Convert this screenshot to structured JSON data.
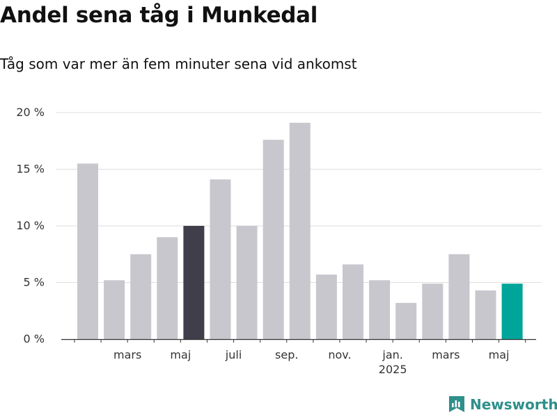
{
  "header": {
    "title": "Andel sena tåg i Munkedal",
    "subtitle": "Tåg som var mer än fem minuter sena vid ankomst"
  },
  "branding": {
    "logo_text": "Newsworthy",
    "logo_icon": "bar-chart-bookmark-icon",
    "logo_color": "#2f8f8a"
  },
  "chart_data": {
    "type": "bar",
    "title": "Andel sena tåg i Munkedal",
    "subtitle": "Tåg som var mer än fem minuter sena vid ankomst",
    "xlabel": "",
    "ylabel": "",
    "ylim": [
      0,
      20
    ],
    "yticks": [
      0,
      5,
      10,
      15,
      20
    ],
    "ytick_labels": [
      "0 %",
      "5 %",
      "10 %",
      "15 %",
      "20 %"
    ],
    "grid": true,
    "legend": "none",
    "categories": [
      "2024-02",
      "2024-03",
      "2024-04",
      "2024-05",
      "2024-06",
      "2024-07",
      "2024-08",
      "2024-09",
      "2024-10",
      "2024-11",
      "2024-12",
      "2025-01",
      "2025-02",
      "2025-03",
      "2025-04",
      "2025-05",
      "2025-06"
    ],
    "values": [
      15.5,
      5.2,
      7.5,
      9.0,
      10.0,
      14.1,
      10.0,
      17.6,
      19.1,
      5.7,
      6.6,
      5.2,
      3.2,
      4.9,
      7.5,
      4.3,
      4.9
    ],
    "highlight": {
      "2024-06": "#3f3e4a",
      "2025-06": "#00a59a"
    },
    "default_color": "#c8c7ce",
    "xtick_labels": [
      {
        "category": "2024-03",
        "label": "mars"
      },
      {
        "category": "2024-05",
        "label": "maj"
      },
      {
        "category": "2024-07",
        "label": "juli"
      },
      {
        "category": "2024-09",
        "label": "sep."
      },
      {
        "category": "2024-11",
        "label": "nov."
      },
      {
        "category": "2025-01",
        "label": "jan.",
        "sublabel": "2025"
      },
      {
        "category": "2025-03",
        "label": "mars"
      },
      {
        "category": "2025-05",
        "label": "maj"
      }
    ]
  }
}
